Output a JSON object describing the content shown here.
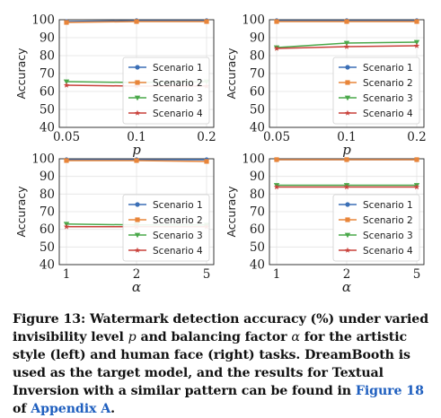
{
  "colors": {
    "scenario_1": "#3b6fb6",
    "scenario_2": "#e8853a",
    "scenario_3": "#4aa84a",
    "scenario_4": "#c9403a",
    "link": "#1f5fbf"
  },
  "chart_data": [
    {
      "type": "line",
      "x": [
        "0.05",
        "0.1",
        "0.2"
      ],
      "xlabel": "p",
      "ylabel": "Accuracy",
      "ylim": [
        40,
        100
      ],
      "yticks": [
        40,
        50,
        60,
        70,
        80,
        90,
        100
      ],
      "legend": "center-right",
      "series": [
        {
          "name": "Scenario 1",
          "values": [
            99.0,
            99.5,
            99.5
          ]
        },
        {
          "name": "Scenario 2",
          "values": [
            98.5,
            99.0,
            99.0
          ]
        },
        {
          "name": "Scenario 3",
          "values": [
            65.5,
            65.0,
            65.5
          ]
        },
        {
          "name": "Scenario 4",
          "values": [
            63.5,
            63.0,
            63.0
          ]
        }
      ]
    },
    {
      "type": "line",
      "x": [
        "0.05",
        "0.1",
        "0.2"
      ],
      "xlabel": "p",
      "ylabel": "Accuracy",
      "ylim": [
        40,
        100
      ],
      "yticks": [
        40,
        50,
        60,
        70,
        80,
        90,
        100
      ],
      "legend": "center-right",
      "series": [
        {
          "name": "Scenario 1",
          "values": [
            99.5,
            99.5,
            99.5
          ]
        },
        {
          "name": "Scenario 2",
          "values": [
            99.0,
            99.0,
            99.0
          ]
        },
        {
          "name": "Scenario 3",
          "values": [
            84.5,
            87.0,
            87.5
          ]
        },
        {
          "name": "Scenario 4",
          "values": [
            84.0,
            85.0,
            85.5
          ]
        }
      ]
    },
    {
      "type": "line",
      "x": [
        "1",
        "2",
        "5"
      ],
      "xlabel": "α",
      "ylabel": "Accuracy",
      "ylim": [
        40,
        100
      ],
      "yticks": [
        40,
        50,
        60,
        70,
        80,
        90,
        100
      ],
      "legend": "center-right",
      "series": [
        {
          "name": "Scenario 1",
          "values": [
            99.5,
            99.5,
            99.5
          ]
        },
        {
          "name": "Scenario 2",
          "values": [
            99.0,
            99.0,
            98.5
          ]
        },
        {
          "name": "Scenario 3",
          "values": [
            63.0,
            62.5,
            62.5
          ]
        },
        {
          "name": "Scenario 4",
          "values": [
            61.5,
            61.5,
            61.5
          ]
        }
      ]
    },
    {
      "type": "line",
      "x": [
        "1",
        "2",
        "5"
      ],
      "xlabel": "α",
      "ylabel": "Accuracy",
      "ylim": [
        40,
        100
      ],
      "yticks": [
        40,
        50,
        60,
        70,
        80,
        90,
        100
      ],
      "legend": "center-right",
      "series": [
        {
          "name": "Scenario 1",
          "values": [
            99.5,
            99.5,
            99.5
          ]
        },
        {
          "name": "Scenario 2",
          "values": [
            99.5,
            99.5,
            99.5
          ]
        },
        {
          "name": "Scenario 3",
          "values": [
            85.0,
            85.0,
            85.0
          ]
        },
        {
          "name": "Scenario 4",
          "values": [
            84.0,
            84.0,
            84.0
          ]
        }
      ]
    }
  ],
  "caption": {
    "part1": "Figure 13: Watermark detection accuracy (%) under varied invisibility level ",
    "sym_p": "p",
    "part2": " and balancing factor ",
    "sym_alpha": "α",
    "part3": " for the artistic style (left) and human face (right) tasks. DreamBooth is used as the target model, and the results for Textual Inversion with a similar pattern can be found in ",
    "link1": "Figure 18",
    "part4": " of ",
    "link2": "Appendix A",
    "part5": "."
  }
}
